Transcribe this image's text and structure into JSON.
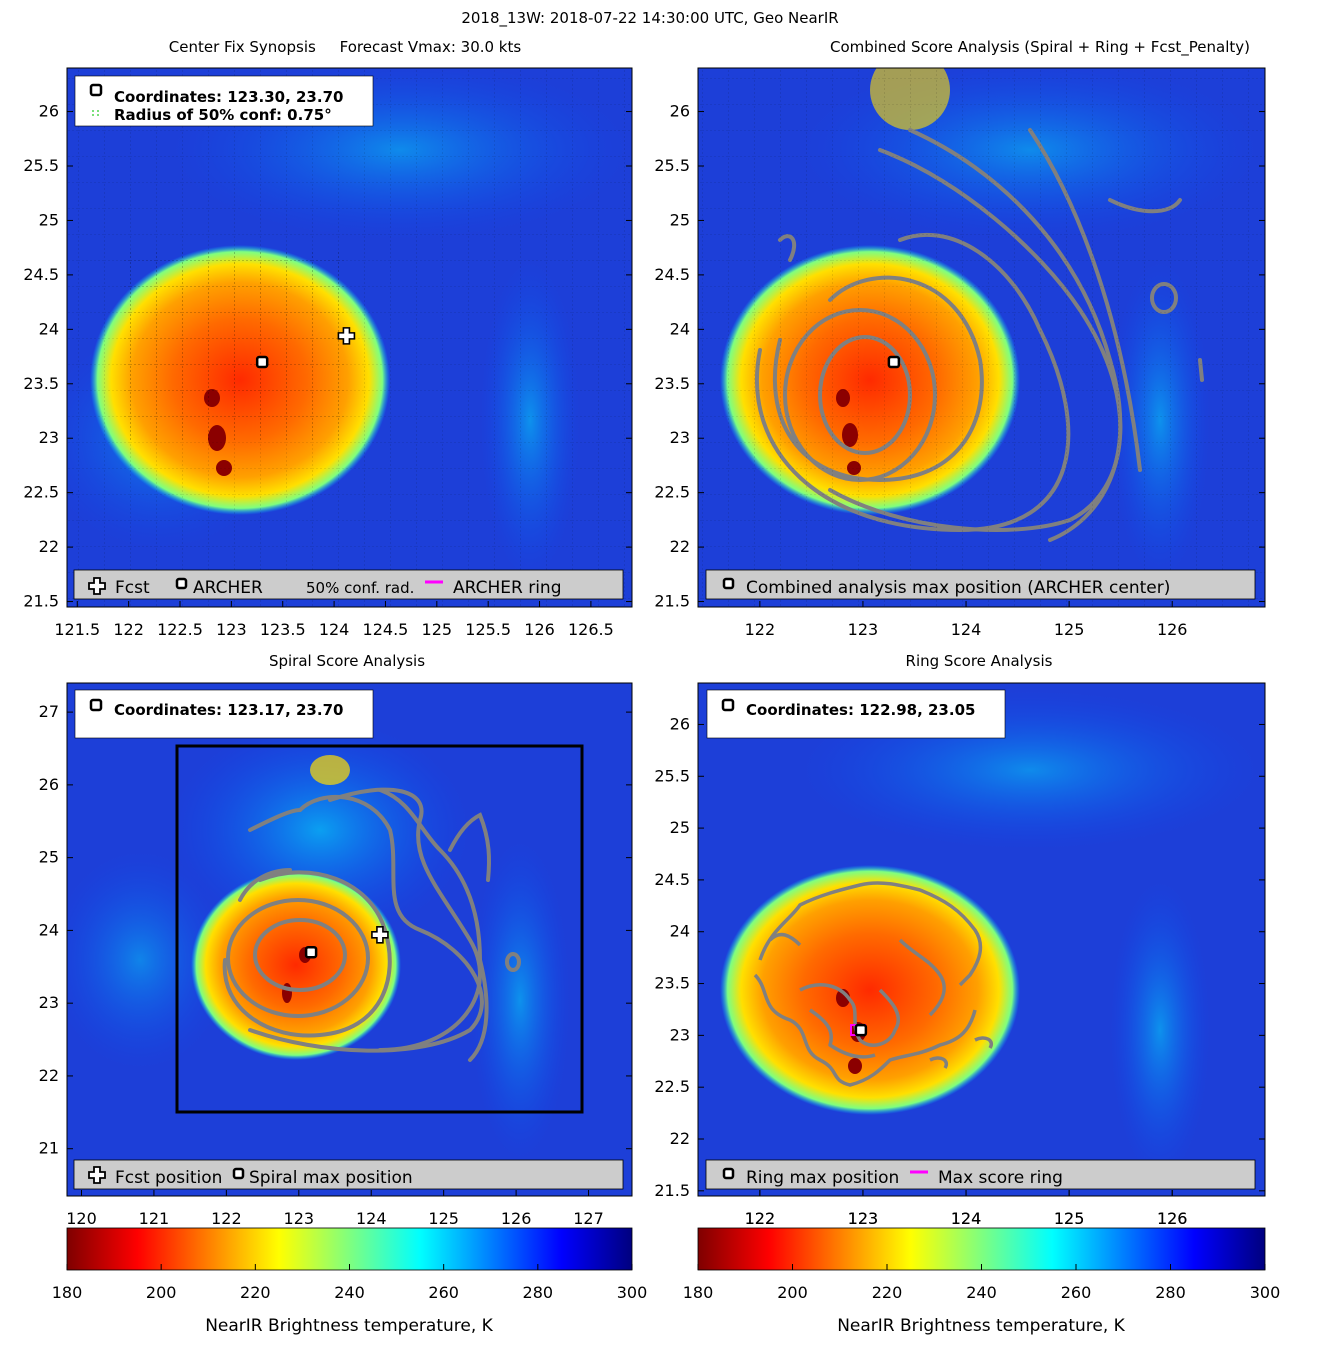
{
  "figure_title": "2018_13W: 2018-07-22 14:30:00 UTC, Geo NearIR",
  "colors": {
    "archer_ring": "#ff00ff",
    "conf_radius": "#22cc22",
    "contour": "#808080",
    "legend_bg": "#cccccc",
    "colormap": [
      "#7f0000",
      "#ff0000",
      "#ff7f00",
      "#ffff00",
      "#7fff7f",
      "#00ffff",
      "#007fff",
      "#0000ff",
      "#00007f"
    ]
  },
  "panels": [
    {
      "id": "center-fix",
      "title": "Center Fix Synopsis     Forecast Vmax: 30.0 kts",
      "info_lines": [
        "Coordinates: 123.30, 23.70",
        "Radius of 50% conf: 0.75°"
      ],
      "legend": [
        {
          "icon": "plus-icon",
          "label": "Fcst"
        },
        {
          "icon": "square-marker-icon",
          "label": "ARCHER"
        },
        {
          "icon": "dotted-line-icon",
          "label": "50% conf. rad."
        },
        {
          "icon": "magenta-line-icon",
          "label": "ARCHER ring"
        }
      ]
    },
    {
      "id": "combined",
      "title": "Combined Score Analysis (Spiral + Ring + Fcst_Penalty)",
      "legend": [
        {
          "icon": "square-marker-icon",
          "label": "Combined analysis max position (ARCHER center)"
        }
      ]
    },
    {
      "id": "spiral",
      "title": "Spiral Score Analysis",
      "info_lines": [
        "Coordinates: 123.17, 23.70"
      ],
      "legend": [
        {
          "icon": "plus-icon",
          "label": "Fcst position"
        },
        {
          "icon": "square-marker-icon",
          "label": "Spiral max position"
        }
      ]
    },
    {
      "id": "ring",
      "title": "Ring Score Analysis",
      "info_lines": [
        "Coordinates: 122.98, 23.05"
      ],
      "legend": [
        {
          "icon": "square-marker-icon",
          "label": "Ring max position"
        },
        {
          "icon": "magenta-line-icon",
          "label": "Max score ring"
        }
      ]
    }
  ],
  "colorbars": [
    {
      "id": "left",
      "label": "NearIR Brightness temperature, K",
      "ticks": [
        "180",
        "200",
        "220",
        "240",
        "260",
        "280",
        "300"
      ],
      "top_ticks": [
        "120",
        "121",
        "122",
        "123",
        "124",
        "125",
        "126",
        "127"
      ]
    },
    {
      "id": "right",
      "label": "NearIR Brightness temperature, K",
      "ticks": [
        "180",
        "200",
        "220",
        "240",
        "260",
        "280",
        "300"
      ],
      "top_ticks": [
        "122",
        "123",
        "124",
        "125",
        "126"
      ]
    }
  ],
  "chart_data": [
    {
      "type": "heatmap",
      "panel": "center-fix",
      "xlim": [
        121.4,
        126.9
      ],
      "ylim": [
        21.45,
        26.4
      ],
      "x_ticks": [
        121.5,
        122,
        122.5,
        123,
        123.5,
        124,
        124.5,
        125,
        125.5,
        126,
        126.5
      ],
      "y_ticks": [
        21.5,
        22,
        22.5,
        23,
        23.5,
        24,
        24.5,
        25,
        25.5,
        26
      ],
      "markers": [
        {
          "kind": "archer",
          "lon": 123.3,
          "lat": 23.7
        },
        {
          "kind": "fcst",
          "lon": 124.12,
          "lat": 23.94
        }
      ],
      "storm": {
        "lon": 123.0,
        "lat": 23.5,
        "core_radius_deg": 1.1,
        "min_temp_K": 190
      }
    },
    {
      "type": "heatmap",
      "panel": "combined",
      "xlim": [
        121.4,
        126.9
      ],
      "ylim": [
        21.45,
        26.4
      ],
      "x_ticks": [
        122,
        123,
        124,
        125,
        126
      ],
      "y_ticks": [
        21.5,
        22,
        22.5,
        23,
        23.5,
        24,
        24.5,
        25,
        25.5,
        26
      ],
      "markers": [
        {
          "kind": "archer",
          "lon": 123.3,
          "lat": 23.7
        }
      ]
    },
    {
      "type": "heatmap",
      "panel": "spiral",
      "xlim": [
        119.8,
        127.6
      ],
      "ylim": [
        20.35,
        27.4
      ],
      "y_ticks": [
        21,
        22,
        23,
        24,
        25,
        26,
        27
      ],
      "box": {
        "lon_min": 121.3,
        "lon_max": 126.9,
        "lat_min": 21.5,
        "lat_max": 26.5
      },
      "markers": [
        {
          "kind": "archer",
          "lon": 123.17,
          "lat": 23.7
        },
        {
          "kind": "fcst",
          "lon": 124.12,
          "lat": 23.94
        }
      ]
    },
    {
      "type": "heatmap",
      "panel": "ring",
      "xlim": [
        121.4,
        126.9
      ],
      "ylim": [
        21.45,
        26.4
      ],
      "x_ticks": [
        122,
        123,
        124,
        125,
        126
      ],
      "y_ticks": [
        21.5,
        22,
        22.5,
        23,
        23.5,
        24,
        24.5,
        25,
        25.5,
        26
      ],
      "markers": [
        {
          "kind": "archer",
          "lon": 122.98,
          "lat": 23.05
        }
      ],
      "ring": {
        "lon": 122.98,
        "lat": 23.05
      }
    }
  ]
}
